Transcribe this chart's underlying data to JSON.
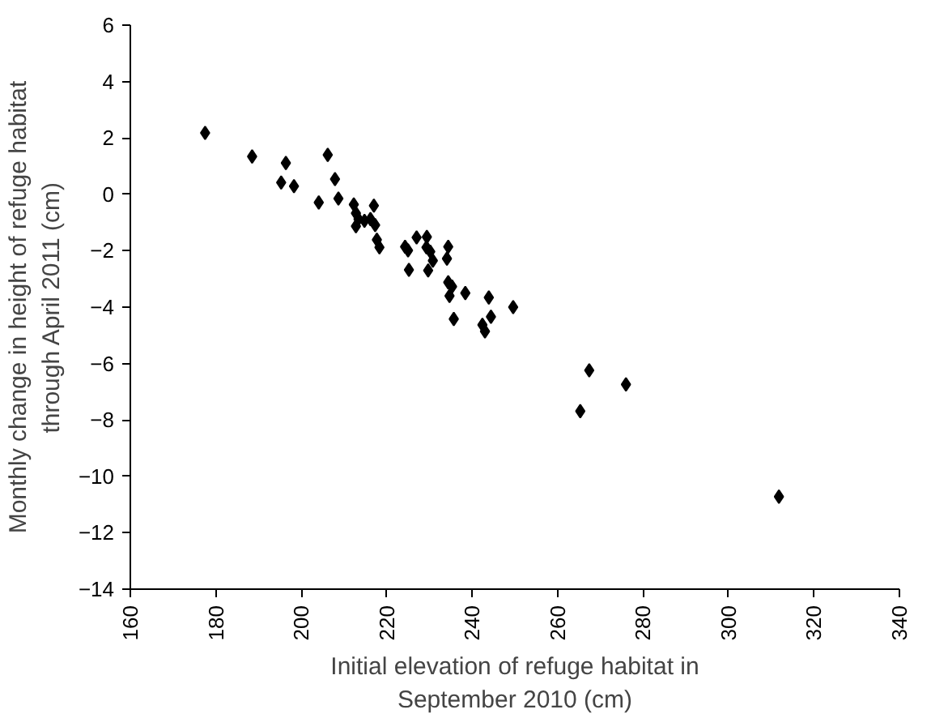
{
  "chart_data": {
    "type": "scatter",
    "xlabel": "Initial elevation of refuge habitat in\nSeptember 2010 (cm)",
    "ylabel": "Monthly change in height of refuge habitat\nthrough April 2011 (cm)",
    "x": [
      177.5,
      188.5,
      196.4,
      195.3,
      198.3,
      206.2,
      207.9,
      204.1,
      208.7,
      212.3,
      217.0,
      212.8,
      213.4,
      212.8,
      214.8,
      216.2,
      217.3,
      217.7,
      218.3,
      224.3,
      225.0,
      225.2,
      227.0,
      229.4,
      229.3,
      230.2,
      230.8,
      229.7,
      234.4,
      234.1,
      234.4,
      235.3,
      234.7,
      238.4,
      235.7,
      243.9,
      244.4,
      242.4,
      243.0,
      249.6,
      265.3,
      267.4,
      276.0,
      311.8
    ],
    "values": [
      2.18,
      1.34,
      1.11,
      0.42,
      0.29,
      1.4,
      0.54,
      -0.29,
      -0.15,
      -0.36,
      -0.4,
      -0.67,
      -0.88,
      -1.13,
      -0.94,
      -0.88,
      -1.09,
      -1.61,
      -1.88,
      -1.86,
      -1.99,
      -2.68,
      -1.53,
      -1.51,
      -1.88,
      -2.03,
      -2.35,
      -2.7,
      -1.86,
      -2.28,
      -3.12,
      -3.27,
      -3.6,
      -3.5,
      -4.42,
      -3.66,
      -4.34,
      -4.63,
      -4.86,
      -4.0,
      -7.69,
      -6.24,
      -6.74,
      -10.72
    ],
    "color": "#000000",
    "marker": "diamond",
    "grid": false,
    "xlim": [
      160,
      340
    ],
    "ylim": [
      -14,
      6
    ],
    "xticks": [
      160,
      180,
      200,
      220,
      240,
      260,
      280,
      300,
      320,
      340
    ],
    "yticks": [
      -14,
      -12,
      -10,
      -8,
      -6,
      -4,
      -2,
      0,
      2,
      4,
      6
    ]
  }
}
